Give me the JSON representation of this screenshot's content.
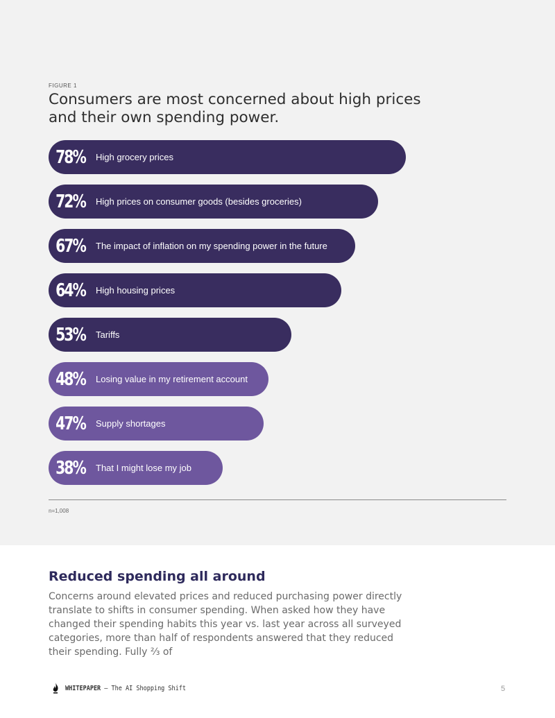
{
  "figure": {
    "label": "FIGURE 1",
    "title": "Consumers are most concerned about high prices and their own spending power.",
    "note": "n=1,008"
  },
  "chart_data": {
    "type": "bar",
    "orientation": "horizontal",
    "unit": "%",
    "categories": [
      "High grocery prices",
      "High prices on consumer goods (besides groceries)",
      "The impact of inflation on my spending power in the future",
      "High housing prices",
      "Tariffs",
      "Losing value in my retirement account",
      "Supply shortages",
      "That I might lose my job"
    ],
    "values": [
      78,
      72,
      67,
      64,
      53,
      48,
      47,
      38
    ],
    "value_labels": [
      "78%",
      "72%",
      "67%",
      "64%",
      "53%",
      "48%",
      "47%",
      "38%"
    ],
    "colors": [
      "#392d5f",
      "#392d5f",
      "#392d5f",
      "#392d5f",
      "#392d5f",
      "#6e579e",
      "#6e579e",
      "#6e579e"
    ],
    "xlim": [
      0,
      100
    ],
    "grid": false,
    "legend": "none"
  },
  "body": {
    "heading": "Reduced spending all around",
    "paragraph": "Concerns around elevated prices and reduced purchasing power directly translate to shifts in consumer spending. When asked how they have changed their spending habits this year vs. last year across all surveyed categories, more than half of respondents answered that they reduced their spending. Fully ⅔ of"
  },
  "footer": {
    "brand": "WHITEPAPER",
    "subtitle": " – The AI Shopping Shift",
    "logo_icon": "flame-icon",
    "page_number": "5"
  }
}
